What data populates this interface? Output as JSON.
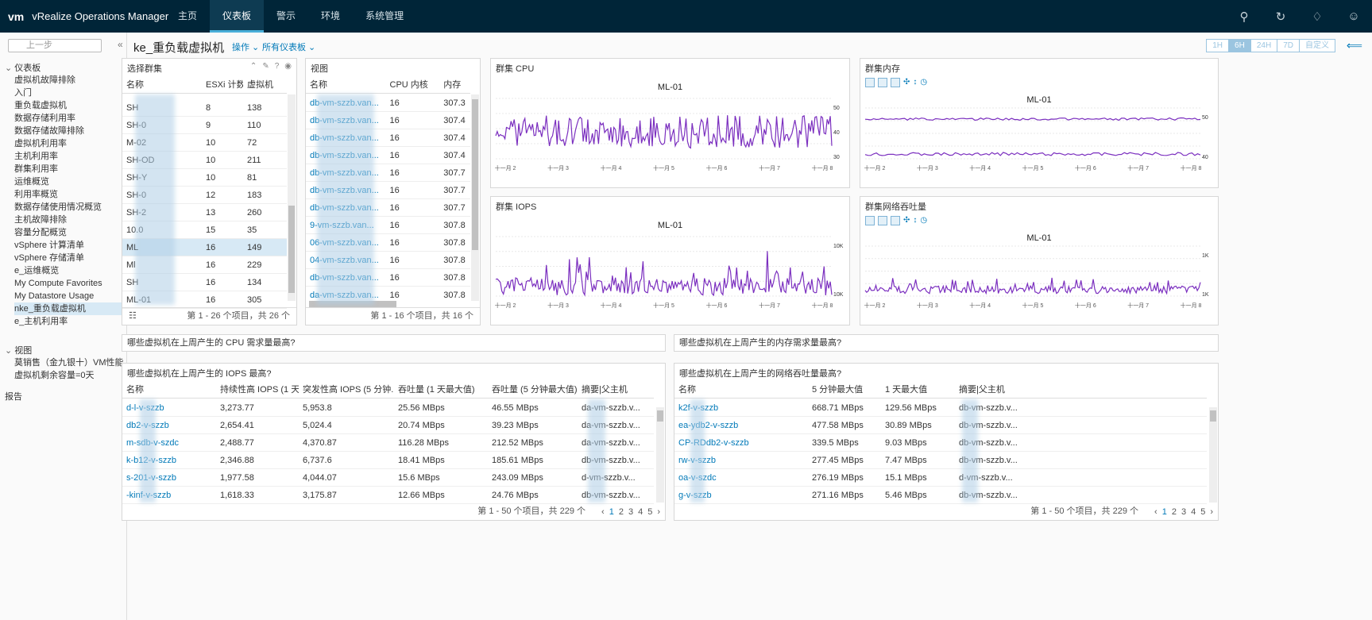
{
  "app": {
    "logo": "vm",
    "title": "vRealize Operations Manager"
  },
  "nav": {
    "tabs": [
      "主页",
      "仪表板",
      "警示",
      "环境",
      "系统管理"
    ],
    "active": 1
  },
  "sidebar": {
    "back_label": "上一步",
    "dashboards_label": "仪表板",
    "items": [
      "虚拟机故障排除",
      "入门",
      "重负载虚拟机",
      "数据存储利用率",
      "数据存储故障排除",
      "虚拟机利用率",
      "主机利用率",
      "群集利用率",
      "运维概览",
      "利用率概览",
      "数据存储使用情况概览",
      "主机故障排除",
      "容量分配概览",
      "vSphere 计算清单",
      "vSphere 存储清单",
      "e_运维概览",
      "My Compute Favorites",
      "My Datastore Usage",
      "nke_重负载虚拟机",
      "e_主机利用率"
    ],
    "selected": 18,
    "views_label": "视图",
    "views": [
      "莫销售（金九银十）VM性能",
      "虚拟机剩余容量=0天"
    ],
    "reports_label": "报告"
  },
  "header": {
    "title": "ke_重负载虚拟机",
    "actions": "操作",
    "all_dashboards": "所有仪表板",
    "time_buttons": [
      "1H",
      "6H",
      "24H",
      "7D",
      "自定义"
    ],
    "time_active": 1
  },
  "cluster_widget": {
    "title": "选择群集",
    "columns": [
      "名称",
      "ESXi 计数",
      "虚拟机"
    ],
    "rows": [
      [
        "SH",
        "8",
        "138"
      ],
      [
        "SH-0",
        "9",
        "110"
      ],
      [
        "M-02",
        "10",
        "72"
      ],
      [
        "SH-OD",
        "10",
        "211"
      ],
      [
        "SH-Y",
        "10",
        "81"
      ],
      [
        "SH-0",
        "12",
        "183"
      ],
      [
        "SH-2",
        "13",
        "260"
      ],
      [
        "10.0",
        "15",
        "35"
      ],
      [
        "ML",
        "16",
        "149"
      ],
      [
        "Ml",
        "16",
        "229"
      ],
      [
        "SH",
        "16",
        "134"
      ],
      [
        "ML-01",
        "16",
        "305"
      ]
    ],
    "selected": 8,
    "footer": "第 1 - 26 个项目，共 26 个"
  },
  "view_widget": {
    "title": "视图",
    "columns": [
      "名称",
      "CPU 内核",
      "内存"
    ],
    "rows": [
      [
        "db-vm-szzb.van...",
        "16",
        "307.3"
      ],
      [
        "db-vm-szzb.van...",
        "16",
        "307.4"
      ],
      [
        "db-vm-szzb.van...",
        "16",
        "307.4"
      ],
      [
        "db-vm-szzb.van...",
        "16",
        "307.4"
      ],
      [
        "db-vm-szzb.van...",
        "16",
        "307.7"
      ],
      [
        "db-vm-szzb.van...",
        "16",
        "307.7"
      ],
      [
        "db-vm-szzb.van...",
        "16",
        "307.7"
      ],
      [
        "9-vm-szzb.van...",
        "16",
        "307.8"
      ],
      [
        "06-vm-szzb.van...",
        "16",
        "307.8"
      ],
      [
        "04-vm-szzb.van...",
        "16",
        "307.8"
      ],
      [
        "db-vm-szzb.van...",
        "16",
        "307.8"
      ],
      [
        "da-vm-szzb.van...",
        "16",
        "307.8"
      ]
    ],
    "footer": "第 1 - 16 个项目，共 16 个"
  },
  "charts": {
    "cpu": {
      "title": "群集 CPU",
      "label": "ML-01",
      "y_ticks": [
        "50",
        "40",
        "30"
      ],
      "x_ticks": [
        "十一月 2",
        "十一月 3",
        "十一月 4",
        "十一月 5",
        "十一月 6",
        "十一月 7",
        "十一月 8"
      ]
    },
    "iops": {
      "title": "群集 IOPS",
      "label": "ML-01",
      "y_ticks": [
        "10K",
        "10K"
      ],
      "x_ticks": [
        "十一月 2",
        "十一月 3",
        "十一月 4",
        "十一月 5",
        "十一月 6",
        "十一月 7",
        "十一月 8"
      ]
    },
    "mem": {
      "title": "群集内存",
      "label": "ML-01",
      "y_ticks": [
        "50",
        "40"
      ],
      "x_ticks": [
        "十一月 2",
        "十一月 3",
        "十一月 4",
        "十一月 5",
        "十一月 6",
        "十一月 7",
        "十一月 8"
      ]
    },
    "net": {
      "title": "群集网络吞吐量",
      "label": "ML-01",
      "y_ticks": [
        "1K",
        "1K"
      ],
      "x_ticks": [
        "十一月 2",
        "十一月 3",
        "十一月 4",
        "十一月 5",
        "十一月 6",
        "十一月 7",
        "十一月 8"
      ]
    }
  },
  "questions": {
    "cpu": "哪些虚拟机在上周产生的 CPU 需求量最高?",
    "mem": "哪些虚拟机在上周产生的内存需求量最高?"
  },
  "iops_table": {
    "title": "哪些虚拟机在上周产生的 IOPS 最高?",
    "columns": [
      "名称",
      "持续性高 IOPS (1 天...",
      "突发性高 IOPS (5 分钟...",
      "吞吐量 (1 天最大值)",
      "吞吐量 (5 分钟最大值)",
      "摘要|父主机"
    ],
    "rows": [
      [
        "d-l-v-szzb",
        "3,273.77",
        "5,953.8",
        "25.56 MBps",
        "46.55 MBps",
        "da-vm-szzb.v..."
      ],
      [
        "db2-v-szzb",
        "2,654.41",
        "5,024.4",
        "20.74 MBps",
        "39.23 MBps",
        "da-vm-szzb.v..."
      ],
      [
        "m-sdb-v-szdc",
        "2,488.77",
        "4,370.87",
        "116.28 MBps",
        "212.52 MBps",
        "da-vm-szzb.v..."
      ],
      [
        "k-b12-v-szzb",
        "2,346.88",
        "6,737.6",
        "18.41 MBps",
        "185.61 MBps",
        "db-vm-szzb.v..."
      ],
      [
        "s-201-v-szzb",
        "1,977.58",
        "4,044.07",
        "15.6 MBps",
        "243.09 MBps",
        "d-vm-szzb.v..."
      ],
      [
        "-kinf-v-szzb",
        "1,618.33",
        "3,175.87",
        "12.66 MBps",
        "24.76 MBps",
        "db-vm-szzb.v..."
      ]
    ],
    "footer": "第 1 - 50 个项目，共 229 个",
    "pages": [
      "1",
      "2",
      "3",
      "4",
      "5"
    ]
  },
  "net_table": {
    "title": "哪些虚拟机在上周产生的网络吞吐量最高?",
    "columns": [
      "名称",
      "5 分钟最大值",
      "1 天最大值",
      "摘要|父主机"
    ],
    "rows": [
      [
        "k2f-v-szzb",
        "668.71 MBps",
        "129.56 MBps",
        "db-vm-szzb.v..."
      ],
      [
        "ea-ydb2-v-szzb",
        "477.58 MBps",
        "30.89 MBps",
        "db-vm-szzb.v..."
      ],
      [
        "CP-RDdb2-v-szzb",
        "339.5 MBps",
        "9.03 MBps",
        "db-vm-szzb.v..."
      ],
      [
        "rw-v-szzb",
        "277.45 MBps",
        "7.47 MBps",
        "db-vm-szzb.v..."
      ],
      [
        "oa-v-szdc",
        "276.19 MBps",
        "15.1 MBps",
        "d-vm-szzb.v..."
      ],
      [
        "g-v-szzb",
        "271.16 MBps",
        "5.46 MBps",
        "db-vm-szzb.v..."
      ]
    ],
    "footer": "第 1 - 50 个项目，共 229 个",
    "pages": [
      "1",
      "2",
      "3",
      "4",
      "5"
    ]
  },
  "colors": {
    "topbar": "#002538",
    "link": "#0079b8",
    "series": "#7b2fbf"
  }
}
